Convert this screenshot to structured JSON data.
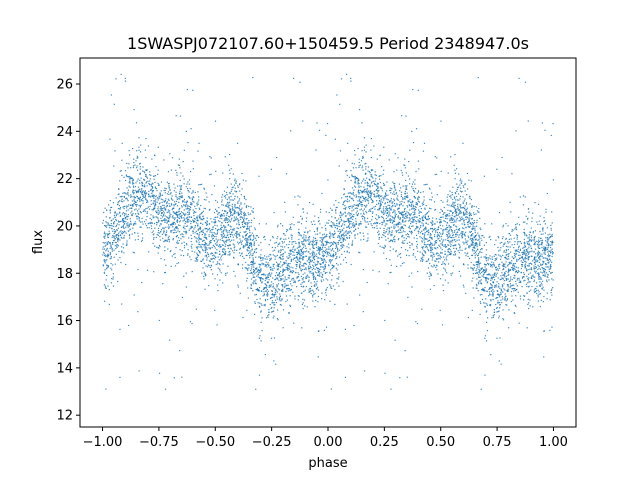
{
  "chart_data": {
    "type": "scatter",
    "title": "1SWASPJ072107.60+150459.5 Period 2348947.0s",
    "xlabel": "phase",
    "ylabel": "flux",
    "xlim": [
      -1.1,
      1.1
    ],
    "ylim": [
      11.5,
      27.1
    ],
    "xticks": [
      -1.0,
      -0.75,
      -0.5,
      -0.25,
      0.0,
      0.25,
      0.5,
      0.75,
      1.0
    ],
    "xtick_labels": [
      "−1.00",
      "−0.75",
      "−0.50",
      "−0.25",
      "0.00",
      "0.25",
      "0.50",
      "0.75",
      "1.00"
    ],
    "yticks": [
      12,
      14,
      16,
      18,
      20,
      22,
      24,
      26
    ],
    "ytick_labels": [
      "12",
      "14",
      "16",
      "18",
      "20",
      "22",
      "24",
      "26"
    ],
    "grid": false,
    "marker_color": "#1f77b4",
    "phase_profile": [
      [
        0.0,
        18.9
      ],
      [
        0.04,
        19.3
      ],
      [
        0.08,
        20.3
      ],
      [
        0.12,
        21.0
      ],
      [
        0.16,
        21.3
      ],
      [
        0.2,
        21.2
      ],
      [
        0.24,
        20.7
      ],
      [
        0.28,
        20.4
      ],
      [
        0.32,
        20.5
      ],
      [
        0.36,
        20.6
      ],
      [
        0.4,
        20.2
      ],
      [
        0.44,
        19.7
      ],
      [
        0.48,
        19.4
      ],
      [
        0.52,
        19.6
      ],
      [
        0.56,
        20.2
      ],
      [
        0.6,
        20.4
      ],
      [
        0.64,
        19.6
      ],
      [
        0.68,
        18.0
      ],
      [
        0.72,
        17.6
      ],
      [
        0.76,
        17.8
      ],
      [
        0.8,
        18.2
      ],
      [
        0.84,
        18.4
      ],
      [
        0.88,
        18.6
      ],
      [
        0.92,
        18.5
      ],
      [
        0.96,
        18.6
      ],
      [
        1.0,
        18.9
      ]
    ]
  }
}
